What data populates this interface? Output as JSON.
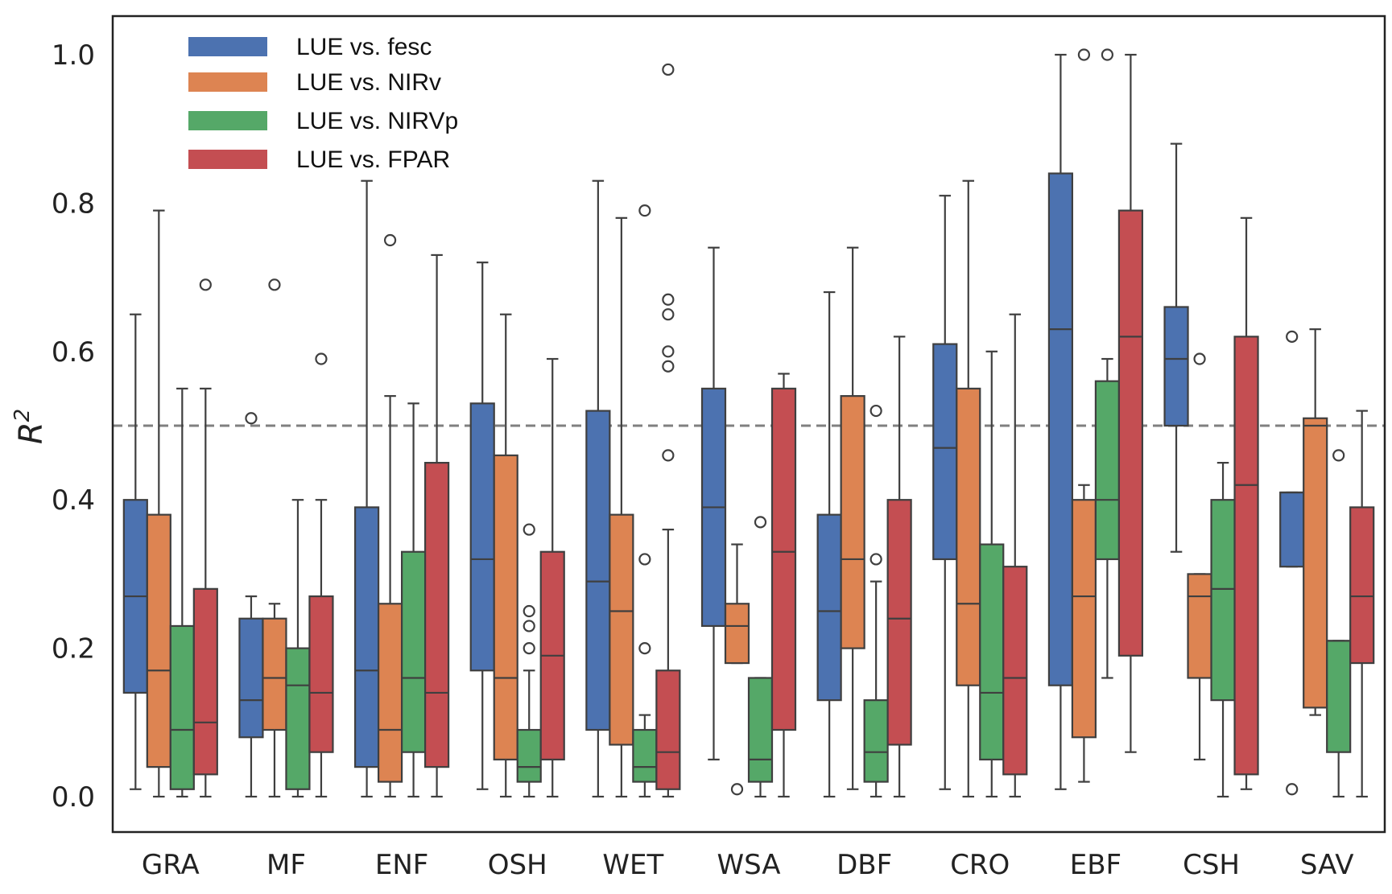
{
  "chart_data": {
    "type": "box",
    "ylabel": "R",
    "ylabel_superscript": "2",
    "xlabel": "",
    "ylim": [
      0.0,
      1.0
    ],
    "yticks": [
      "0.0",
      "0.2",
      "0.4",
      "0.6",
      "0.8",
      "1.0"
    ],
    "reference_line": 0.5,
    "grid": false,
    "legend_position": "top-left",
    "categories": [
      "GRA",
      "MF",
      "ENF",
      "OSH",
      "WET",
      "WSA",
      "DBF",
      "CRO",
      "EBF",
      "CSH",
      "SAV"
    ],
    "series": [
      {
        "name": "LUE vs. fesc",
        "color": "#4c72b0",
        "boxes": [
          {
            "min": 0.01,
            "q1": 0.14,
            "median": 0.27,
            "q3": 0.4,
            "max": 0.65,
            "outliers": []
          },
          {
            "min": 0.0,
            "q1": 0.08,
            "median": 0.13,
            "q3": 0.24,
            "max": 0.27,
            "outliers": [
              0.51
            ]
          },
          {
            "min": 0.0,
            "q1": 0.04,
            "median": 0.17,
            "q3": 0.39,
            "max": 0.83,
            "outliers": []
          },
          {
            "min": 0.01,
            "q1": 0.17,
            "median": 0.32,
            "q3": 0.53,
            "max": 0.72,
            "outliers": []
          },
          {
            "min": 0.0,
            "q1": 0.09,
            "median": 0.29,
            "q3": 0.52,
            "max": 0.83,
            "outliers": []
          },
          {
            "min": 0.05,
            "q1": 0.23,
            "median": 0.39,
            "q3": 0.55,
            "max": 0.74,
            "outliers": []
          },
          {
            "min": 0.0,
            "q1": 0.13,
            "median": 0.25,
            "q3": 0.38,
            "max": 0.68,
            "outliers": []
          },
          {
            "min": 0.01,
            "q1": 0.32,
            "median": 0.47,
            "q3": 0.61,
            "max": 0.81,
            "outliers": []
          },
          {
            "min": 0.01,
            "q1": 0.15,
            "median": 0.63,
            "q3": 0.84,
            "max": 1.0,
            "outliers": []
          },
          {
            "min": 0.33,
            "q1": 0.5,
            "median": 0.59,
            "q3": 0.66,
            "max": 0.88,
            "outliers": []
          },
          {
            "min": 0.31,
            "q1": 0.31,
            "median": 0.41,
            "q3": 0.41,
            "max": 0.41,
            "outliers": [
              0.62,
              0.01
            ]
          }
        ]
      },
      {
        "name": "LUE vs. NIRv",
        "color": "#dd8452",
        "boxes": [
          {
            "min": 0.0,
            "q1": 0.04,
            "median": 0.17,
            "q3": 0.38,
            "max": 0.79,
            "outliers": []
          },
          {
            "min": 0.0,
            "q1": 0.09,
            "median": 0.16,
            "q3": 0.24,
            "max": 0.26,
            "outliers": [
              0.69
            ]
          },
          {
            "min": 0.0,
            "q1": 0.02,
            "median": 0.09,
            "q3": 0.26,
            "max": 0.54,
            "outliers": [
              0.75
            ]
          },
          {
            "min": 0.0,
            "q1": 0.05,
            "median": 0.16,
            "q3": 0.46,
            "max": 0.65,
            "outliers": []
          },
          {
            "min": 0.0,
            "q1": 0.07,
            "median": 0.25,
            "q3": 0.38,
            "max": 0.78,
            "outliers": []
          },
          {
            "min": 0.18,
            "q1": 0.18,
            "median": 0.23,
            "q3": 0.26,
            "max": 0.34,
            "outliers": [
              0.01
            ]
          },
          {
            "min": 0.01,
            "q1": 0.2,
            "median": 0.32,
            "q3": 0.54,
            "max": 0.74,
            "outliers": []
          },
          {
            "min": 0.0,
            "q1": 0.15,
            "median": 0.26,
            "q3": 0.55,
            "max": 0.83,
            "outliers": []
          },
          {
            "min": 0.02,
            "q1": 0.08,
            "median": 0.27,
            "q3": 0.4,
            "max": 0.42,
            "outliers": [
              1.0
            ]
          },
          {
            "min": 0.05,
            "q1": 0.16,
            "median": 0.27,
            "q3": 0.3,
            "max": 0.3,
            "outliers": [
              0.59
            ]
          },
          {
            "min": 0.11,
            "q1": 0.12,
            "median": 0.5,
            "q3": 0.51,
            "max": 0.63,
            "outliers": []
          }
        ]
      },
      {
        "name": "LUE vs. NIRVp",
        "color": "#55a868",
        "boxes": [
          {
            "min": 0.0,
            "q1": 0.01,
            "median": 0.09,
            "q3": 0.23,
            "max": 0.55,
            "outliers": []
          },
          {
            "min": 0.0,
            "q1": 0.01,
            "median": 0.15,
            "q3": 0.2,
            "max": 0.4,
            "outliers": []
          },
          {
            "min": 0.0,
            "q1": 0.06,
            "median": 0.16,
            "q3": 0.33,
            "max": 0.53,
            "outliers": []
          },
          {
            "min": 0.0,
            "q1": 0.02,
            "median": 0.04,
            "q3": 0.09,
            "max": 0.17,
            "outliers": [
              0.2,
              0.23,
              0.25,
              0.36
            ]
          },
          {
            "min": 0.0,
            "q1": 0.02,
            "median": 0.04,
            "q3": 0.09,
            "max": 0.11,
            "outliers": [
              0.2,
              0.32,
              0.79
            ]
          },
          {
            "min": 0.0,
            "q1": 0.02,
            "median": 0.05,
            "q3": 0.16,
            "max": 0.16,
            "outliers": [
              0.37
            ]
          },
          {
            "min": 0.0,
            "q1": 0.02,
            "median": 0.06,
            "q3": 0.13,
            "max": 0.29,
            "outliers": [
              0.32,
              0.52
            ]
          },
          {
            "min": 0.0,
            "q1": 0.05,
            "median": 0.14,
            "q3": 0.34,
            "max": 0.6,
            "outliers": []
          },
          {
            "min": 0.16,
            "q1": 0.32,
            "median": 0.4,
            "q3": 0.56,
            "max": 0.59,
            "outliers": [
              1.0
            ]
          },
          {
            "min": 0.0,
            "q1": 0.13,
            "median": 0.28,
            "q3": 0.4,
            "max": 0.45,
            "outliers": []
          },
          {
            "min": 0.0,
            "q1": 0.06,
            "median": 0.21,
            "q3": 0.21,
            "max": 0.21,
            "outliers": [
              0.46
            ]
          }
        ]
      },
      {
        "name": "LUE vs. FPAR",
        "color": "#c44e52",
        "boxes": [
          {
            "min": 0.0,
            "q1": 0.03,
            "median": 0.1,
            "q3": 0.28,
            "max": 0.55,
            "outliers": [
              0.69
            ]
          },
          {
            "min": 0.0,
            "q1": 0.06,
            "median": 0.14,
            "q3": 0.27,
            "max": 0.4,
            "outliers": [
              0.59
            ]
          },
          {
            "min": 0.0,
            "q1": 0.04,
            "median": 0.14,
            "q3": 0.45,
            "max": 0.73,
            "outliers": []
          },
          {
            "min": 0.0,
            "q1": 0.05,
            "median": 0.19,
            "q3": 0.33,
            "max": 0.59,
            "outliers": []
          },
          {
            "min": 0.0,
            "q1": 0.01,
            "median": 0.06,
            "q3": 0.17,
            "max": 0.36,
            "outliers": [
              0.46,
              0.58,
              0.6,
              0.67,
              0.65,
              0.98
            ]
          },
          {
            "min": 0.0,
            "q1": 0.09,
            "median": 0.33,
            "q3": 0.55,
            "max": 0.57,
            "outliers": []
          },
          {
            "min": 0.0,
            "q1": 0.07,
            "median": 0.24,
            "q3": 0.4,
            "max": 0.62,
            "outliers": []
          },
          {
            "min": 0.0,
            "q1": 0.03,
            "median": 0.16,
            "q3": 0.31,
            "max": 0.65,
            "outliers": []
          },
          {
            "min": 0.06,
            "q1": 0.19,
            "median": 0.62,
            "q3": 0.79,
            "max": 1.0,
            "outliers": []
          },
          {
            "min": 0.01,
            "q1": 0.03,
            "median": 0.42,
            "q3": 0.62,
            "max": 0.78,
            "outliers": []
          },
          {
            "min": 0.0,
            "q1": 0.18,
            "median": 0.27,
            "q3": 0.39,
            "max": 0.52,
            "outliers": []
          }
        ]
      }
    ]
  }
}
